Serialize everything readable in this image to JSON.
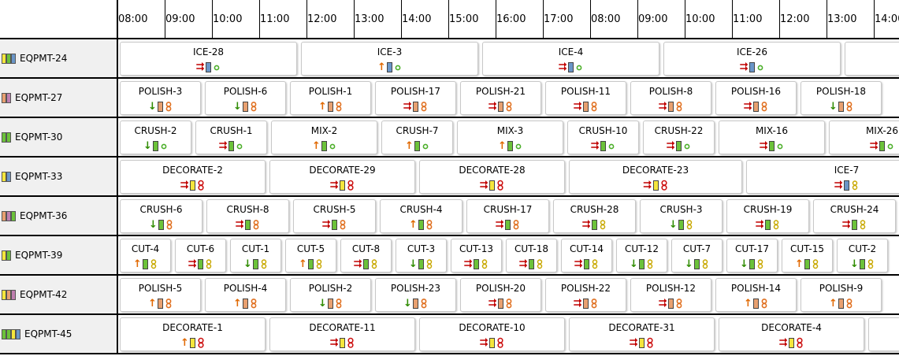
{
  "colors": {
    "priority": {
      "high": "#c00000",
      "medium": "#e06800",
      "low": "#2e8b00"
    },
    "skill": {
      "ice": "#6a96c8",
      "polish": "#e8a070",
      "crush": "#6cc23a",
      "mix": "#6cc23a",
      "decorate": "#f5e63c",
      "cut": "#f5e63c"
    },
    "options": {
      "circle": "#4caf2a",
      "single8": "#e07020",
      "double_circle": "#cc1010",
      "ring8": "#c8a800"
    }
  },
  "timeline": {
    "hours": [
      "08:00",
      "09:00",
      "10:00",
      "11:00",
      "12:00",
      "13:00",
      "14:00",
      "15:00",
      "16:00",
      "17:00",
      "08:00",
      "09:00",
      "10:00",
      "11:00",
      "12:00",
      "13:00",
      "14:00"
    ]
  },
  "resources": [
    {
      "label": "EQPMT-24",
      "swatches": [
        "#f5e63c",
        "#6cc23a",
        "#6a96c8"
      ],
      "tasks": [
        {
          "label": "ICE-28",
          "start": 0,
          "dur": 3.83,
          "priority": "high",
          "skill": "ice",
          "option": "circle"
        },
        {
          "label": "ICE-3",
          "start": 3.83,
          "dur": 3.83,
          "priority": "medium",
          "skill": "ice",
          "option": "circle"
        },
        {
          "label": "ICE-4",
          "start": 7.67,
          "dur": 3.83,
          "priority": "high",
          "skill": "ice",
          "option": "circle"
        },
        {
          "label": "ICE-26",
          "start": 11.5,
          "dur": 3.83,
          "priority": "high",
          "skill": "ice",
          "option": "circle"
        },
        {
          "label": "",
          "start": 15.33,
          "dur": 3.83,
          "priority": "",
          "skill": "",
          "option": ""
        }
      ]
    },
    {
      "label": "EQPMT-27",
      "swatches": [
        "#e8a070",
        "#c080b0"
      ],
      "tasks": [
        {
          "label": "POLISH-3",
          "start": 0,
          "dur": 1.8,
          "priority": "low",
          "skill": "polish",
          "option": "single8"
        },
        {
          "label": "POLISH-6",
          "start": 1.8,
          "dur": 1.8,
          "priority": "low",
          "skill": "polish",
          "option": "single8"
        },
        {
          "label": "POLISH-1",
          "start": 3.6,
          "dur": 1.8,
          "priority": "medium",
          "skill": "polish",
          "option": "single8"
        },
        {
          "label": "POLISH-17",
          "start": 5.4,
          "dur": 1.8,
          "priority": "high",
          "skill": "polish",
          "option": "single8"
        },
        {
          "label": "POLISH-21",
          "start": 7.2,
          "dur": 1.8,
          "priority": "high",
          "skill": "polish",
          "option": "single8"
        },
        {
          "label": "POLISH-11",
          "start": 9.0,
          "dur": 1.8,
          "priority": "high",
          "skill": "polish",
          "option": "single8"
        },
        {
          "label": "POLISH-8",
          "start": 10.8,
          "dur": 1.8,
          "priority": "high",
          "skill": "polish",
          "option": "single8"
        },
        {
          "label": "POLISH-16",
          "start": 12.6,
          "dur": 1.8,
          "priority": "high",
          "skill": "polish",
          "option": "single8"
        },
        {
          "label": "POLISH-18",
          "start": 14.4,
          "dur": 1.8,
          "priority": "low",
          "skill": "polish",
          "option": "single8"
        }
      ]
    },
    {
      "label": "EQPMT-30",
      "swatches": [
        "#6cc23a",
        "#6cc23a"
      ],
      "tasks": [
        {
          "label": "CRUSH-2",
          "start": 0,
          "dur": 1.6,
          "priority": "low",
          "skill": "crush",
          "option": "circle"
        },
        {
          "label": "CRUSH-1",
          "start": 1.6,
          "dur": 1.6,
          "priority": "high",
          "skill": "crush",
          "option": "circle"
        },
        {
          "label": "MIX-2",
          "start": 3.2,
          "dur": 2.33,
          "priority": "medium",
          "skill": "mix",
          "option": "circle"
        },
        {
          "label": "CRUSH-7",
          "start": 5.53,
          "dur": 1.6,
          "priority": "medium",
          "skill": "crush",
          "option": "circle"
        },
        {
          "label": "MIX-3",
          "start": 7.13,
          "dur": 2.33,
          "priority": "medium",
          "skill": "mix",
          "option": "circle"
        },
        {
          "label": "CRUSH-10",
          "start": 9.47,
          "dur": 1.6,
          "priority": "high",
          "skill": "crush",
          "option": "circle"
        },
        {
          "label": "CRUSH-22",
          "start": 11.07,
          "dur": 1.6,
          "priority": "high",
          "skill": "crush",
          "option": "circle"
        },
        {
          "label": "MIX-16",
          "start": 12.67,
          "dur": 2.33,
          "priority": "high",
          "skill": "mix",
          "option": "circle"
        },
        {
          "label": "MIX-26",
          "start": 15.0,
          "dur": 2.33,
          "priority": "high",
          "skill": "mix",
          "option": "circle"
        }
      ]
    },
    {
      "label": "EQPMT-33",
      "swatches": [
        "#f5e63c",
        "#6a96c8"
      ],
      "tasks": [
        {
          "label": "DECORATE-2",
          "start": 0,
          "dur": 3.17,
          "priority": "high",
          "skill": "decorate",
          "option": "double_circle"
        },
        {
          "label": "DECORATE-29",
          "start": 3.17,
          "dur": 3.17,
          "priority": "high",
          "skill": "decorate",
          "option": "double_circle"
        },
        {
          "label": "DECORATE-28",
          "start": 6.33,
          "dur": 3.17,
          "priority": "high",
          "skill": "decorate",
          "option": "double_circle"
        },
        {
          "label": "DECORATE-23",
          "start": 9.5,
          "dur": 3.75,
          "priority": "high",
          "skill": "decorate",
          "option": "double_circle"
        },
        {
          "label": "ICE-7",
          "start": 13.25,
          "dur": 4.33,
          "priority": "high",
          "skill": "ice",
          "option": "ring8"
        }
      ]
    },
    {
      "label": "EQPMT-36",
      "swatches": [
        "#e8a070",
        "#c080b0",
        "#6cc23a"
      ],
      "tasks": [
        {
          "label": "CRUSH-6",
          "start": 0,
          "dur": 1.83,
          "priority": "low",
          "skill": "crush",
          "option": "single8"
        },
        {
          "label": "CRUSH-8",
          "start": 1.83,
          "dur": 1.83,
          "priority": "high",
          "skill": "crush",
          "option": "single8"
        },
        {
          "label": "CRUSH-5",
          "start": 3.67,
          "dur": 1.83,
          "priority": "high",
          "skill": "crush",
          "option": "single8"
        },
        {
          "label": "CRUSH-4",
          "start": 5.5,
          "dur": 1.83,
          "priority": "medium",
          "skill": "crush",
          "option": "single8"
        },
        {
          "label": "CRUSH-17",
          "start": 7.33,
          "dur": 1.83,
          "priority": "high",
          "skill": "crush",
          "option": "single8"
        },
        {
          "label": "CRUSH-28",
          "start": 9.17,
          "dur": 1.83,
          "priority": "high",
          "skill": "crush",
          "option": "ring8"
        },
        {
          "label": "CRUSH-3",
          "start": 11.0,
          "dur": 1.83,
          "priority": "low",
          "skill": "crush",
          "option": "ring8"
        },
        {
          "label": "CRUSH-19",
          "start": 12.83,
          "dur": 1.83,
          "priority": "high",
          "skill": "crush",
          "option": "ring8"
        },
        {
          "label": "CRUSH-24",
          "start": 14.67,
          "dur": 1.83,
          "priority": "high",
          "skill": "crush",
          "option": "ring8"
        }
      ]
    },
    {
      "label": "EQPMT-39",
      "swatches": [
        "#f5e63c",
        "#6cc23a"
      ],
      "tasks": [
        {
          "label": "CUT-4",
          "start": 0,
          "dur": 1.17,
          "priority": "medium",
          "skill": "crush",
          "option": "ring8"
        },
        {
          "label": "CUT-6",
          "start": 1.17,
          "dur": 1.17,
          "priority": "high",
          "skill": "crush",
          "option": "ring8"
        },
        {
          "label": "CUT-1",
          "start": 2.33,
          "dur": 1.17,
          "priority": "low",
          "skill": "crush",
          "option": "ring8"
        },
        {
          "label": "CUT-5",
          "start": 3.5,
          "dur": 1.17,
          "priority": "medium",
          "skill": "crush",
          "option": "ring8"
        },
        {
          "label": "CUT-8",
          "start": 4.67,
          "dur": 1.17,
          "priority": "high",
          "skill": "crush",
          "option": "ring8"
        },
        {
          "label": "CUT-3",
          "start": 5.83,
          "dur": 1.17,
          "priority": "low",
          "skill": "crush",
          "option": "ring8"
        },
        {
          "label": "CUT-13",
          "start": 7.0,
          "dur": 1.17,
          "priority": "high",
          "skill": "crush",
          "option": "ring8"
        },
        {
          "label": "CUT-18",
          "start": 8.17,
          "dur": 1.17,
          "priority": "high",
          "skill": "crush",
          "option": "ring8"
        },
        {
          "label": "CUT-14",
          "start": 9.33,
          "dur": 1.17,
          "priority": "high",
          "skill": "crush",
          "option": "ring8"
        },
        {
          "label": "CUT-12",
          "start": 10.5,
          "dur": 1.17,
          "priority": "low",
          "skill": "crush",
          "option": "ring8"
        },
        {
          "label": "CUT-7",
          "start": 11.67,
          "dur": 1.17,
          "priority": "low",
          "skill": "crush",
          "option": "ring8"
        },
        {
          "label": "CUT-17",
          "start": 12.83,
          "dur": 1.17,
          "priority": "low",
          "skill": "crush",
          "option": "ring8"
        },
        {
          "label": "CUT-15",
          "start": 14.0,
          "dur": 1.17,
          "priority": "medium",
          "skill": "crush",
          "option": "ring8"
        },
        {
          "label": "CUT-2",
          "start": 15.17,
          "dur": 1.17,
          "priority": "low",
          "skill": "crush",
          "option": "ring8"
        }
      ]
    },
    {
      "label": "EQPMT-42",
      "swatches": [
        "#f5e63c",
        "#e8a070",
        "#c080b0"
      ],
      "tasks": [
        {
          "label": "POLISH-5",
          "start": 0,
          "dur": 1.8,
          "priority": "medium",
          "skill": "polish",
          "option": "single8"
        },
        {
          "label": "POLISH-4",
          "start": 1.8,
          "dur": 1.8,
          "priority": "medium",
          "skill": "polish",
          "option": "single8"
        },
        {
          "label": "POLISH-2",
          "start": 3.6,
          "dur": 1.8,
          "priority": "low",
          "skill": "polish",
          "option": "single8"
        },
        {
          "label": "POLISH-23",
          "start": 5.4,
          "dur": 1.8,
          "priority": "low",
          "skill": "polish",
          "option": "single8"
        },
        {
          "label": "POLISH-20",
          "start": 7.2,
          "dur": 1.8,
          "priority": "high",
          "skill": "polish",
          "option": "single8"
        },
        {
          "label": "POLISH-22",
          "start": 9.0,
          "dur": 1.8,
          "priority": "high",
          "skill": "polish",
          "option": "single8"
        },
        {
          "label": "POLISH-12",
          "start": 10.8,
          "dur": 1.8,
          "priority": "high",
          "skill": "polish",
          "option": "single8"
        },
        {
          "label": "POLISH-14",
          "start": 12.6,
          "dur": 1.8,
          "priority": "medium",
          "skill": "polish",
          "option": "single8"
        },
        {
          "label": "POLISH-9",
          "start": 14.4,
          "dur": 1.8,
          "priority": "medium",
          "skill": "polish",
          "option": "single8"
        }
      ]
    },
    {
      "label": "EQPMT-45",
      "swatches": [
        "#6cc23a",
        "#6cc23a",
        "#f5e63c",
        "#6a96c8"
      ],
      "tasks": [
        {
          "label": "DECORATE-1",
          "start": 0,
          "dur": 3.17,
          "priority": "medium",
          "skill": "decorate",
          "option": "double_circle"
        },
        {
          "label": "DECORATE-11",
          "start": 3.17,
          "dur": 3.17,
          "priority": "high",
          "skill": "decorate",
          "option": "double_circle"
        },
        {
          "label": "DECORATE-10",
          "start": 6.33,
          "dur": 3.17,
          "priority": "high",
          "skill": "decorate",
          "option": "double_circle"
        },
        {
          "label": "DECORATE-31",
          "start": 9.5,
          "dur": 3.17,
          "priority": "high",
          "skill": "decorate",
          "option": "double_circle"
        },
        {
          "label": "DECORATE-4",
          "start": 12.67,
          "dur": 3.17,
          "priority": "high",
          "skill": "decorate",
          "option": "double_circle"
        },
        {
          "label": "",
          "start": 15.83,
          "dur": 3.17,
          "priority": "",
          "skill": "",
          "option": ""
        }
      ]
    }
  ]
}
